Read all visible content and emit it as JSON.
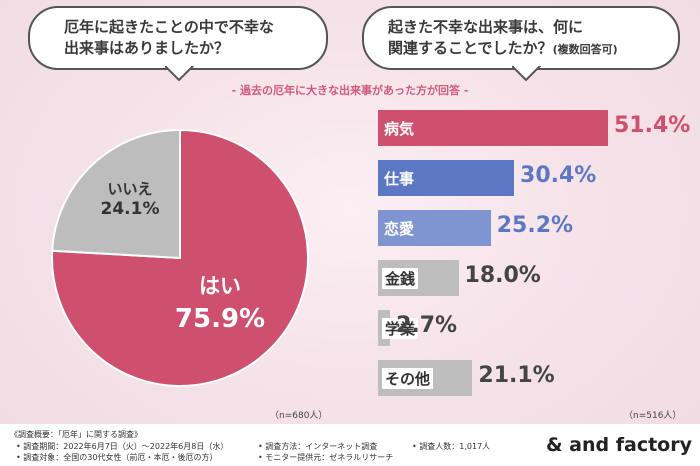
{
  "questions": {
    "left": [
      "厄年に起きたことの中で不幸な",
      "出来事はありましたか？"
    ],
    "right_line1": "起きた不幸な出来事は、何に",
    "right_line2": "関連することでしたか？",
    "right_note": "(複数回答可)"
  },
  "subtitle": "- 過去の厄年に大きな出来事があった方が回答 -",
  "pie_n": "（n=680人）",
  "bar_n": "（n=516人）",
  "colors": {
    "pink": "#cf4f6f",
    "blue": "#5c78c4",
    "blue_light": "#7f95d2",
    "gray": "#bdbdbd"
  },
  "chart_data": [
    {
      "type": "pie",
      "labels": [
        "はい",
        "いいえ"
      ],
      "values": [
        75.9,
        24.1
      ],
      "value_labels": [
        "75.9%",
        "24.1%"
      ]
    },
    {
      "type": "bar",
      "categories": [
        "病気",
        "仕事",
        "恋愛",
        "金銭",
        "学業",
        "その他"
      ],
      "values": [
        51.4,
        30.4,
        25.2,
        18.0,
        2.7,
        21.1
      ],
      "value_labels": [
        "51.4%",
        "30.4%",
        "25.2%",
        "18.0%",
        "2.7%",
        "21.1%"
      ],
      "orientation": "horizontal"
    }
  ],
  "footer": {
    "line1": "《調査概要：「厄年」に関する調査》",
    "period": "• 調査期間：2022年6月7日（火）〜2022年6月8日（水）",
    "target": "• 調査対象：全国の30代女性（前厄・本厄・後厄の方）",
    "method": "• 調査方法：インターネット調査",
    "provider": "• モニター提供元：ゼネラルリサーチ",
    "count": "• 調査人数：1,017人",
    "logo": "& and factory"
  }
}
